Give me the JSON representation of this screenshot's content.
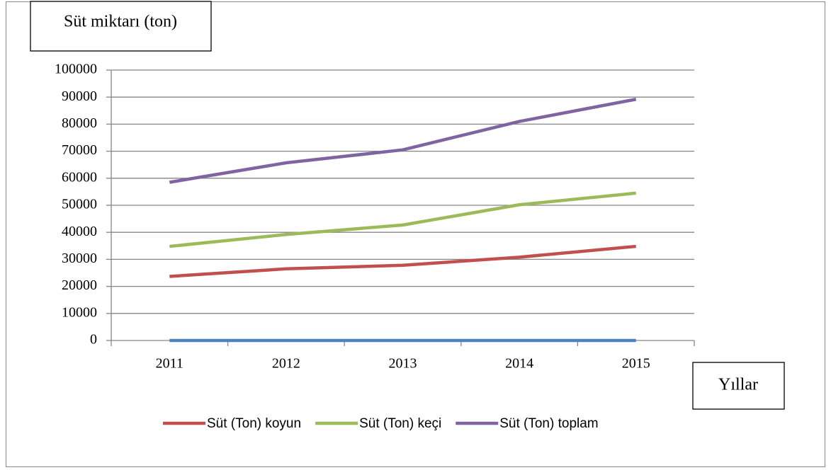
{
  "chart_data": {
    "type": "line",
    "y_axis_label": "Süt miktarı (ton)",
    "x_axis_label": "Yıllar",
    "categories": [
      "2011",
      "2012",
      "2013",
      "2014",
      "2015"
    ],
    "series": [
      {
        "color": "#4f81bd",
        "values": [
          0,
          0,
          0,
          0,
          0
        ]
      },
      {
        "name": "Süt (Ton) koyun",
        "color": "#c0504d",
        "values": [
          23700,
          26500,
          27800,
          30800,
          34800
        ]
      },
      {
        "name": "Süt (Ton) keçi",
        "color": "#9bbb59",
        "values": [
          34800,
          39200,
          42700,
          50200,
          54500
        ]
      },
      {
        "name": "Süt (Ton) toplam",
        "color": "#8064a2",
        "values": [
          58500,
          65700,
          70500,
          81000,
          89200
        ]
      }
    ],
    "ylim": [
      0,
      100000
    ],
    "yticks": [
      0,
      10000,
      20000,
      30000,
      40000,
      50000,
      60000,
      70000,
      80000,
      90000,
      100000
    ],
    "grid": true,
    "legend": "bottom"
  }
}
